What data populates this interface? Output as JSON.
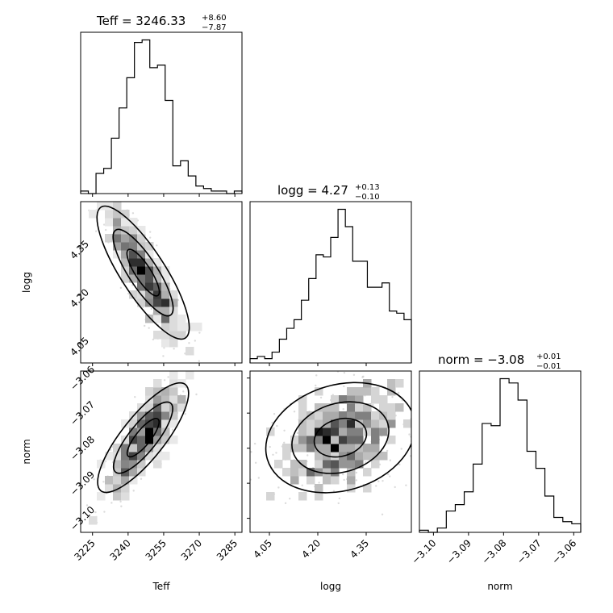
{
  "chart_data": [
    {
      "type": "histogram",
      "variable": "Teff",
      "title": {
        "prefix": "Teff = ",
        "value": "3246.33",
        "upper": "+8.60",
        "lower": "−7.87"
      },
      "bin_range": [
        3220,
        3288
      ],
      "counts": [
        1,
        0,
        8,
        10,
        22,
        34,
        46,
        60,
        61,
        50,
        51,
        37,
        11,
        13,
        7,
        3,
        2,
        1,
        1,
        0,
        1
      ],
      "xticks": [
        "3225",
        "3240",
        "3255",
        "3270",
        "3285"
      ],
      "xtick_values": [
        3225,
        3240,
        3255,
        3270,
        3285
      ],
      "xlabel": "Teff"
    },
    {
      "type": "histogram",
      "variable": "logg",
      "title": {
        "prefix": "logg = ",
        "value": "4.27",
        "upper": "+0.13",
        "lower": "−0.10"
      },
      "bin_range": [
        3.99,
        4.49
      ],
      "counts": [
        2,
        3,
        2,
        5,
        11,
        16,
        20,
        29,
        39,
        50,
        49,
        58,
        71,
        63,
        47,
        47,
        35,
        35,
        37,
        24,
        23,
        20
      ],
      "xticks": [
        "4.05",
        "4.20",
        "4.35"
      ],
      "xtick_values": [
        4.05,
        4.2,
        4.35
      ],
      "xlabel": "logg"
    },
    {
      "type": "histogram",
      "variable": "norm",
      "title": {
        "prefix": "norm = ",
        "value": "−3.08",
        "upper": "+0.01",
        "lower": "−0.01"
      },
      "bin_range": [
        -3.104,
        -3.058
      ],
      "counts": [
        1,
        0,
        2,
        10,
        13,
        19,
        32,
        51,
        50,
        72,
        70,
        62,
        38,
        30,
        17,
        7,
        5,
        4
      ],
      "xticks": [
        "−3.10",
        "−3.09",
        "−3.08",
        "−3.07",
        "−3.06"
      ],
      "xtick_values": [
        -3.1,
        -3.09,
        -3.08,
        -3.07,
        -3.06
      ],
      "xlabel": "norm"
    },
    {
      "type": "heatmap",
      "x_variable": "Teff",
      "y_variable": "logg",
      "ylabel": "logg",
      "yticks": [
        "4.05",
        "4.20",
        "4.35"
      ],
      "ytick_values": [
        4.05,
        4.2,
        4.35
      ],
      "x_range": [
        3220,
        3288
      ],
      "y_range": [
        3.99,
        4.49
      ],
      "levels": [
        [
          3230,
          4.44
        ],
        [
          3234,
          4.4
        ],
        [
          3238,
          4.37
        ],
        [
          3240,
          4.33
        ],
        [
          3243,
          4.3
        ],
        [
          3246,
          4.27
        ],
        [
          3249,
          4.22
        ],
        [
          3252,
          4.17
        ],
        [
          3256,
          4.12
        ],
        [
          3262,
          4.07
        ]
      ]
    },
    {
      "type": "heatmap",
      "x_variable": "Teff",
      "y_variable": "norm",
      "ylabel": "norm",
      "yticks": [
        "−3.06",
        "−3.07",
        "−3.08",
        "−3.09",
        "−3.10"
      ],
      "ytick_values": [
        -3.06,
        -3.07,
        -3.08,
        -3.09,
        -3.1
      ],
      "x_range": [
        3220,
        3288
      ],
      "y_range": [
        -3.104,
        -3.058
      ]
    },
    {
      "type": "heatmap",
      "x_variable": "logg",
      "y_variable": "norm",
      "x_range": [
        3.99,
        4.49
      ],
      "y_range": [
        -3.104,
        -3.058
      ]
    }
  ]
}
